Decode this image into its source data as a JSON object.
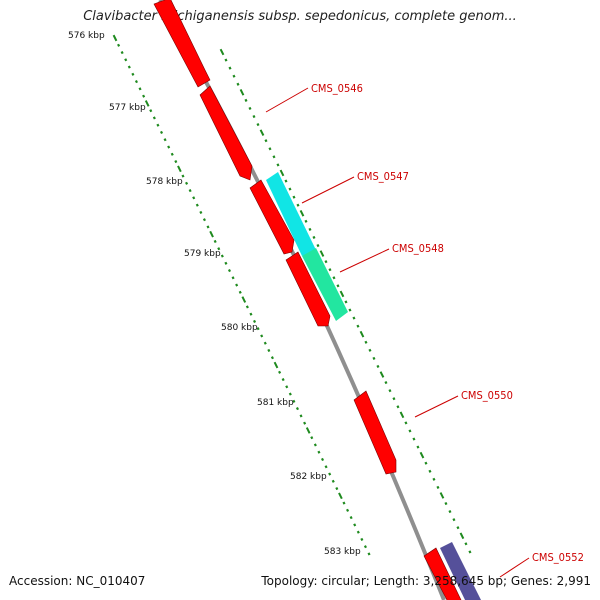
{
  "title": "Clavibacter michiganensis subsp. sepedonicus, complete genom...",
  "footer": {
    "accession": "Accession: NC_010407",
    "topology": "Topology: circular; Length: 3,258,645 bp; Genes: 2,991"
  },
  "colors": {
    "backbone": "#8f8f8f",
    "tick": "#1e8a1e",
    "label": "#cc0000",
    "gene_red": "#ff0000",
    "gene_cyan": "#11e5e5",
    "gene_green": "#22e6a0",
    "gene_purple": "#55509a"
  },
  "kbp_labels": [
    "576 kbp",
    "577 kbp",
    "578 kbp",
    "579 kbp",
    "580 kbp",
    "581 kbp",
    "582 kbp",
    "583 kbp"
  ],
  "genes": [
    {
      "label": "",
      "color": "gene_red"
    },
    {
      "label": "CMS_0546",
      "color": "gene_red"
    },
    {
      "label": "CMS_0547",
      "color": "gene_cyan"
    },
    {
      "label": "",
      "color": "gene_red"
    },
    {
      "label": "CMS_0548",
      "color": "gene_green"
    },
    {
      "label": "",
      "color": "gene_red"
    },
    {
      "label": "CMS_0550",
      "color": "gene_red"
    },
    {
      "label": "",
      "color": "gene_red"
    },
    {
      "label": "CMS_0552",
      "color": "gene_purple"
    }
  ]
}
